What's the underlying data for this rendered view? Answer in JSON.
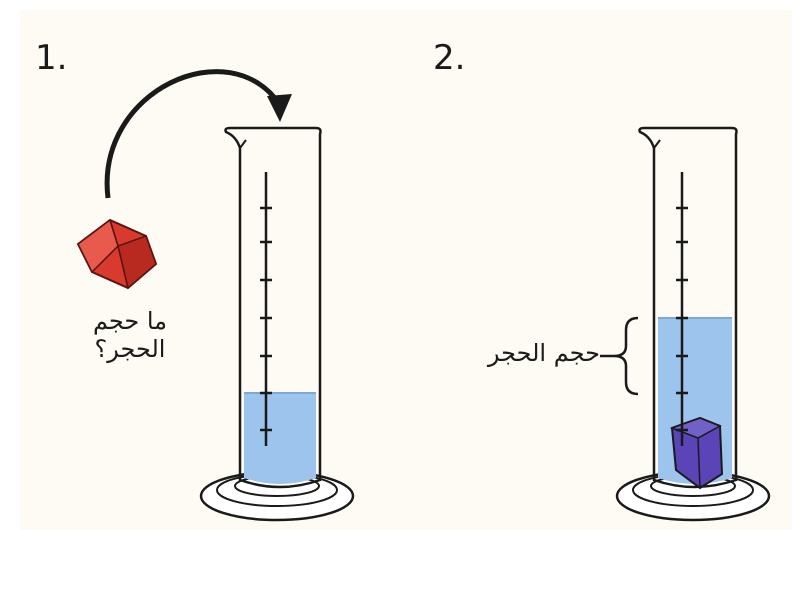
{
  "steps": {
    "first": "1.",
    "second": "2."
  },
  "labels": {
    "question_line1": "ما حجم",
    "question_line2": "الحجر؟",
    "stone_volume": "حجم الحجر"
  },
  "colors": {
    "water": "#9cc4ec",
    "water_edge": "#7aa9d9",
    "stone_red": "#d83a2e",
    "stone_submerged": "#5a44b8",
    "outline": "#1a1a1a"
  }
}
